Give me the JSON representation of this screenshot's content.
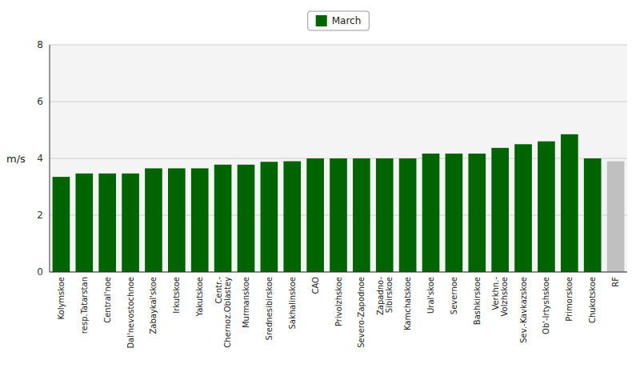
{
  "chart_data": {
    "type": "bar",
    "categories": [
      "Kolymskoe",
      "resp.Tatarstan",
      "Central'noe",
      "Dal'nevostochnoe",
      "Zabaykal'skoe",
      "Irkutskoe",
      "Yakutskoe",
      "Centr.-\nChernoz.Oblastey",
      "Murmanskoe",
      "Srednesibirskoe",
      "Sakhalinskoe",
      "CAO",
      "Privolzhskoe",
      "Severo-Zapodnoe",
      "Zapadno-\nSibirskoe",
      "Kamchatskoe",
      "Ural'skoe",
      "Severnoe",
      "Bashkirskoe",
      "Verkhn.-\nVolzhskoe",
      "Sev.-Kavkazskoe",
      "Ob'-Irtyshskoe",
      "Primorskoe",
      "Chukotskoe",
      "RF"
    ],
    "series": [
      {
        "name": "March",
        "color": "#006400",
        "values": [
          3.35,
          3.47,
          3.47,
          3.47,
          3.65,
          3.65,
          3.65,
          3.78,
          3.78,
          3.88,
          3.9,
          4.0,
          4.0,
          4.0,
          4.0,
          4.0,
          4.17,
          4.17,
          4.17,
          4.37,
          4.5,
          4.6,
          4.85,
          4.0,
          3.9
        ],
        "colors": [
          "#006400",
          "#006400",
          "#006400",
          "#006400",
          "#006400",
          "#006400",
          "#006400",
          "#006400",
          "#006400",
          "#006400",
          "#006400",
          "#006400",
          "#006400",
          "#006400",
          "#006400",
          "#006400",
          "#006400",
          "#006400",
          "#006400",
          "#006400",
          "#006400",
          "#006400",
          "#006400",
          "#006400",
          "#c0c0c0"
        ]
      }
    ],
    "ylabel": "m/s",
    "ylim": [
      0,
      8
    ],
    "yticks": [
      0,
      2,
      4,
      6,
      8
    ],
    "grid": true,
    "legend": "top"
  }
}
